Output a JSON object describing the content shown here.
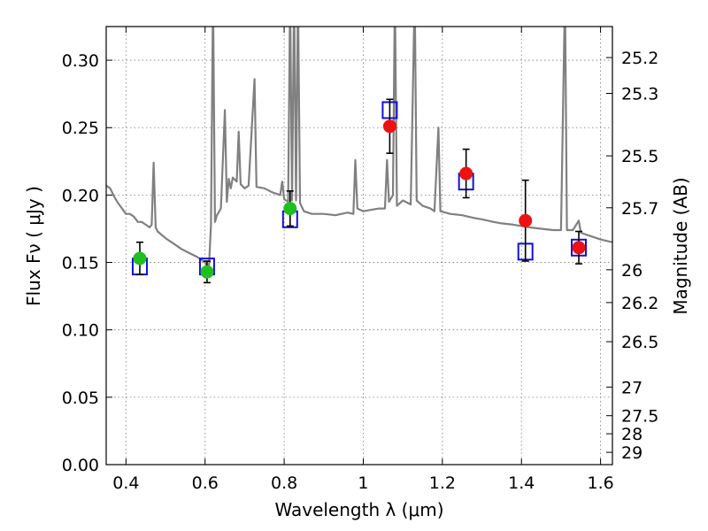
{
  "chart_data": {
    "type": "scatter",
    "title": "",
    "xlabel": "Wavelength  λ (μm)",
    "ylabel": "Flux  Fν  ( μJy )",
    "ylabel_right": "Magnitude (AB)",
    "xlim": [
      0.35,
      1.63
    ],
    "ylim": [
      0.0,
      0.325
    ],
    "grid": true,
    "x_ticks": [
      {
        "value": 0.4,
        "label": "0.4"
      },
      {
        "value": 0.6,
        "label": "0.6"
      },
      {
        "value": 0.8,
        "label": "0.8"
      },
      {
        "value": 1.0,
        "label": "1"
      },
      {
        "value": 1.2,
        "label": "1.2"
      },
      {
        "value": 1.4,
        "label": "1.4"
      },
      {
        "value": 1.6,
        "label": "1.6"
      }
    ],
    "y_ticks": [
      {
        "value": 0.0,
        "label": "0.00"
      },
      {
        "value": 0.05,
        "label": "0.05"
      },
      {
        "value": 0.1,
        "label": "0.10"
      },
      {
        "value": 0.15,
        "label": "0.15"
      },
      {
        "value": 0.2,
        "label": "0.20"
      },
      {
        "value": 0.25,
        "label": "0.25"
      },
      {
        "value": 0.3,
        "label": "0.30"
      }
    ],
    "mag_ticks": [
      {
        "value": 25.2,
        "label": "25.2"
      },
      {
        "value": 25.3,
        "label": "25.3"
      },
      {
        "value": 25.5,
        "label": "25.5"
      },
      {
        "value": 25.7,
        "label": "25.7"
      },
      {
        "value": 26.0,
        "label": "26"
      },
      {
        "value": 26.2,
        "label": "26.2"
      },
      {
        "value": 26.5,
        "label": "26.5"
      },
      {
        "value": 27.0,
        "label": "27"
      },
      {
        "value": 27.5,
        "label": "27.5"
      },
      {
        "value": 28.0,
        "label": "28"
      },
      {
        "value": 29.0,
        "label": "29"
      }
    ],
    "colors": {
      "model": "#808080",
      "optical": "#1fbf1f",
      "nir": "#ee1111",
      "model_band": "#1010dd",
      "errorbar": "#000000",
      "grid": "#7a7a7a"
    },
    "series": [
      {
        "kind": "line",
        "color_key": "model",
        "points": [
          [
            0.35,
            0.207
          ],
          [
            0.36,
            0.205
          ],
          [
            0.37,
            0.199
          ],
          [
            0.38,
            0.194
          ],
          [
            0.39,
            0.19
          ],
          [
            0.4,
            0.186
          ],
          [
            0.41,
            0.186
          ],
          [
            0.42,
            0.184
          ],
          [
            0.43,
            0.18
          ],
          [
            0.44,
            0.18
          ],
          [
            0.45,
            0.178
          ],
          [
            0.46,
            0.176
          ],
          [
            0.465,
            0.178
          ],
          [
            0.47,
            0.224
          ],
          [
            0.475,
            0.176
          ],
          [
            0.48,
            0.173
          ],
          [
            0.5,
            0.168
          ],
          [
            0.52,
            0.164
          ],
          [
            0.54,
            0.16
          ],
          [
            0.56,
            0.157
          ],
          [
            0.58,
            0.154
          ],
          [
            0.6,
            0.15
          ],
          [
            0.605,
            0.146
          ],
          [
            0.61,
            0.148
          ],
          [
            0.615,
            0.178
          ],
          [
            0.62,
            0.35
          ],
          [
            0.625,
            0.18
          ],
          [
            0.63,
            0.185
          ],
          [
            0.64,
            0.19
          ],
          [
            0.65,
            0.263
          ],
          [
            0.655,
            0.195
          ],
          [
            0.66,
            0.212
          ],
          [
            0.665,
            0.205
          ],
          [
            0.67,
            0.213
          ],
          [
            0.68,
            0.21
          ],
          [
            0.685,
            0.247
          ],
          [
            0.69,
            0.208
          ],
          [
            0.7,
            0.205
          ],
          [
            0.71,
            0.207
          ],
          [
            0.725,
            0.286
          ],
          [
            0.73,
            0.206
          ],
          [
            0.75,
            0.205
          ],
          [
            0.77,
            0.202
          ],
          [
            0.79,
            0.2
          ],
          [
            0.795,
            0.21
          ],
          [
            0.8,
            0.197
          ],
          [
            0.81,
            0.195
          ],
          [
            0.815,
            0.35
          ],
          [
            0.82,
            0.196
          ],
          [
            0.825,
            0.35
          ],
          [
            0.83,
            0.196
          ],
          [
            0.835,
            0.35
          ],
          [
            0.84,
            0.194
          ],
          [
            0.85,
            0.188
          ],
          [
            0.87,
            0.186
          ],
          [
            0.9,
            0.186
          ],
          [
            0.93,
            0.185
          ],
          [
            0.96,
            0.187
          ],
          [
            0.975,
            0.186
          ],
          [
            0.98,
            0.226
          ],
          [
            0.985,
            0.19
          ],
          [
            1.0,
            0.188
          ],
          [
            1.02,
            0.189
          ],
          [
            1.04,
            0.19
          ],
          [
            1.055,
            0.19
          ],
          [
            1.06,
            0.226
          ],
          [
            1.065,
            0.195
          ],
          [
            1.075,
            0.2
          ],
          [
            1.08,
            0.35
          ],
          [
            1.085,
            0.192
          ],
          [
            1.1,
            0.196
          ],
          [
            1.12,
            0.193
          ],
          [
            1.13,
            0.35
          ],
          [
            1.135,
            0.196
          ],
          [
            1.15,
            0.192
          ],
          [
            1.17,
            0.19
          ],
          [
            1.18,
            0.188
          ],
          [
            1.19,
            0.25
          ],
          [
            1.195,
            0.188
          ],
          [
            1.22,
            0.186
          ],
          [
            1.25,
            0.185
          ],
          [
            1.28,
            0.183
          ],
          [
            1.3,
            0.182
          ],
          [
            1.33,
            0.18
          ],
          [
            1.35,
            0.179
          ],
          [
            1.38,
            0.178
          ],
          [
            1.4,
            0.177
          ],
          [
            1.42,
            0.176
          ],
          [
            1.45,
            0.175
          ],
          [
            1.48,
            0.174
          ],
          [
            1.5,
            0.174
          ],
          [
            1.51,
            0.35
          ],
          [
            1.515,
            0.174
          ],
          [
            1.53,
            0.174
          ],
          [
            1.545,
            0.181
          ],
          [
            1.55,
            0.172
          ],
          [
            1.57,
            0.17
          ],
          [
            1.6,
            0.167
          ],
          [
            1.63,
            0.165
          ]
        ]
      },
      {
        "kind": "squares",
        "color_key": "model_band",
        "points": [
          [
            0.435,
            0.147
          ],
          [
            0.605,
            0.147
          ],
          [
            0.815,
            0.182
          ],
          [
            1.067,
            0.263
          ],
          [
            1.26,
            0.21
          ],
          [
            1.41,
            0.158
          ],
          [
            1.545,
            0.161
          ]
        ]
      },
      {
        "kind": "points",
        "color_key": "optical",
        "points": [
          {
            "x": 0.435,
            "y": 0.153,
            "err": 0.012
          },
          {
            "x": 0.605,
            "y": 0.143,
            "err": 0.008
          },
          {
            "x": 0.815,
            "y": 0.19,
            "err": 0.013
          }
        ]
      },
      {
        "kind": "points",
        "color_key": "nir",
        "points": [
          {
            "x": 1.067,
            "y": 0.251,
            "err": 0.02
          },
          {
            "x": 1.26,
            "y": 0.216,
            "err": 0.018
          },
          {
            "x": 1.41,
            "y": 0.181,
            "err": 0.03
          },
          {
            "x": 1.545,
            "y": 0.161,
            "err": 0.012
          }
        ]
      }
    ]
  }
}
